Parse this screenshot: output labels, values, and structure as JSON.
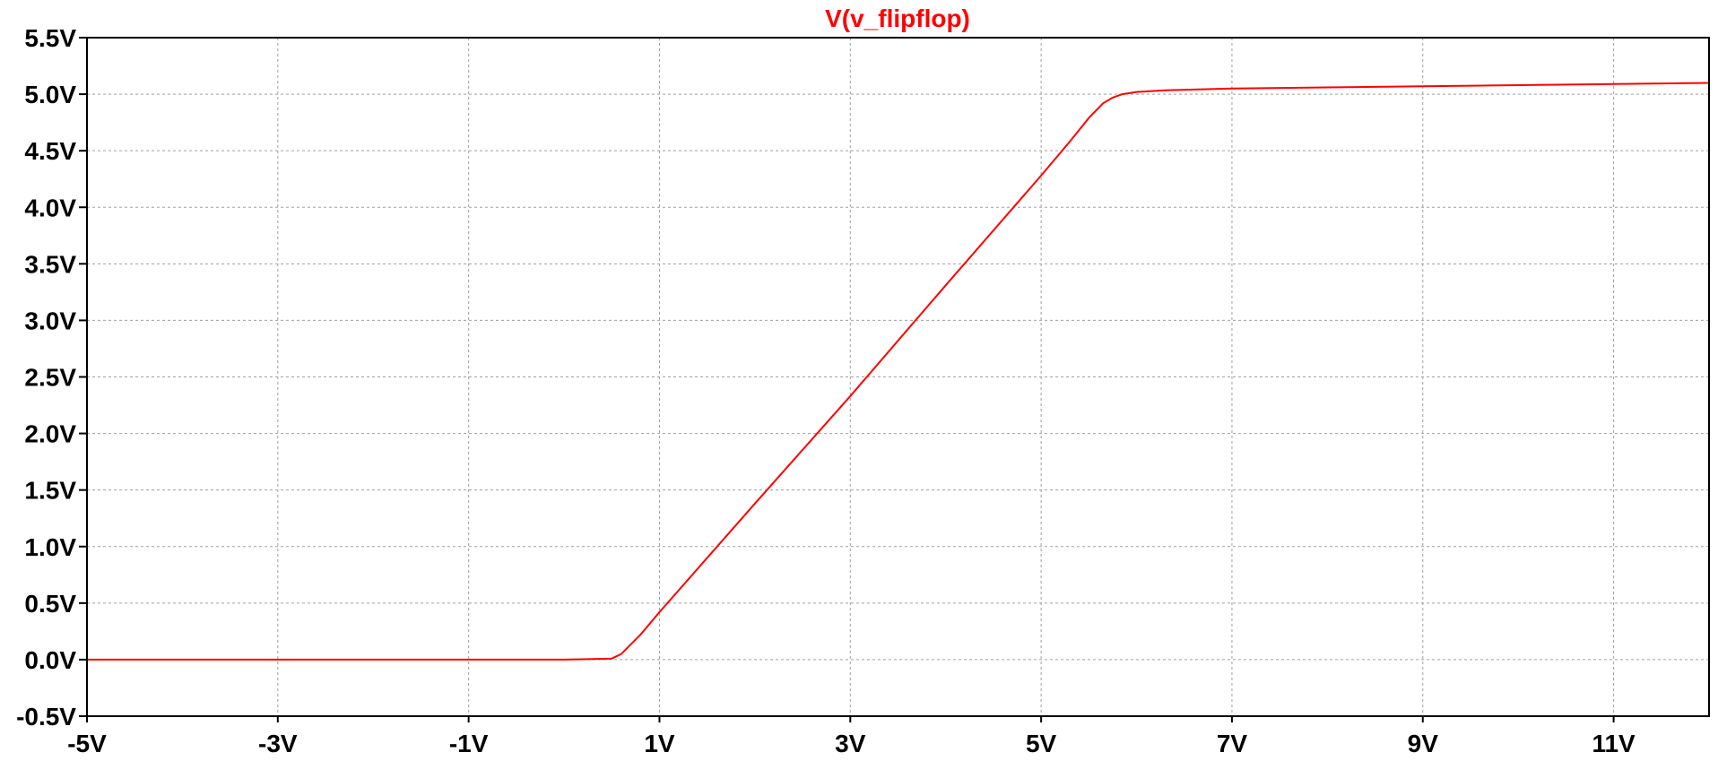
{
  "chart_data": {
    "type": "line",
    "title": "V(v_flipflop)",
    "xlabel": "",
    "ylabel": "",
    "xlim": [
      -5,
      12
    ],
    "ylim": [
      -0.5,
      5.5
    ],
    "grid": true,
    "x_tick_values": [
      -5,
      -3,
      -1,
      1,
      3,
      5,
      7,
      9,
      11
    ],
    "x_tick_labels": [
      "-5V",
      "-3V",
      "-1V",
      "1V",
      "3V",
      "5V",
      "7V",
      "9V",
      "11V"
    ],
    "y_tick_values": [
      5.5,
      5.0,
      4.5,
      4.0,
      3.5,
      3.0,
      2.5,
      2.0,
      1.5,
      1.0,
      0.5,
      0.0,
      -0.5
    ],
    "y_tick_labels": [
      "5.5V",
      "5.0V",
      "4.5V",
      "4.0V",
      "3.5V",
      "3.0V",
      "2.5V",
      "2.0V",
      "1.5V",
      "1.0V",
      "0.5V",
      "0.0V",
      "-0.5V"
    ],
    "series": [
      {
        "name": "V(v_flipflop)",
        "color": "#ff0000",
        "x": [
          -5,
          -3,
          -1,
          0,
          0.3,
          0.5,
          0.6,
          0.8,
          1.0,
          2.0,
          3.0,
          4.0,
          5.0,
          5.3,
          5.5,
          5.65,
          5.75,
          5.85,
          6.0,
          6.3,
          7.0,
          8.0,
          9.0,
          10.0,
          11.0,
          12.0
        ],
        "y": [
          0.0,
          0.0,
          0.0,
          0.0,
          0.005,
          0.01,
          0.05,
          0.22,
          0.42,
          1.38,
          2.33,
          3.31,
          4.28,
          4.58,
          4.79,
          4.92,
          4.97,
          5.0,
          5.02,
          5.035,
          5.05,
          5.06,
          5.07,
          5.08,
          5.09,
          5.1
        ]
      }
    ]
  }
}
